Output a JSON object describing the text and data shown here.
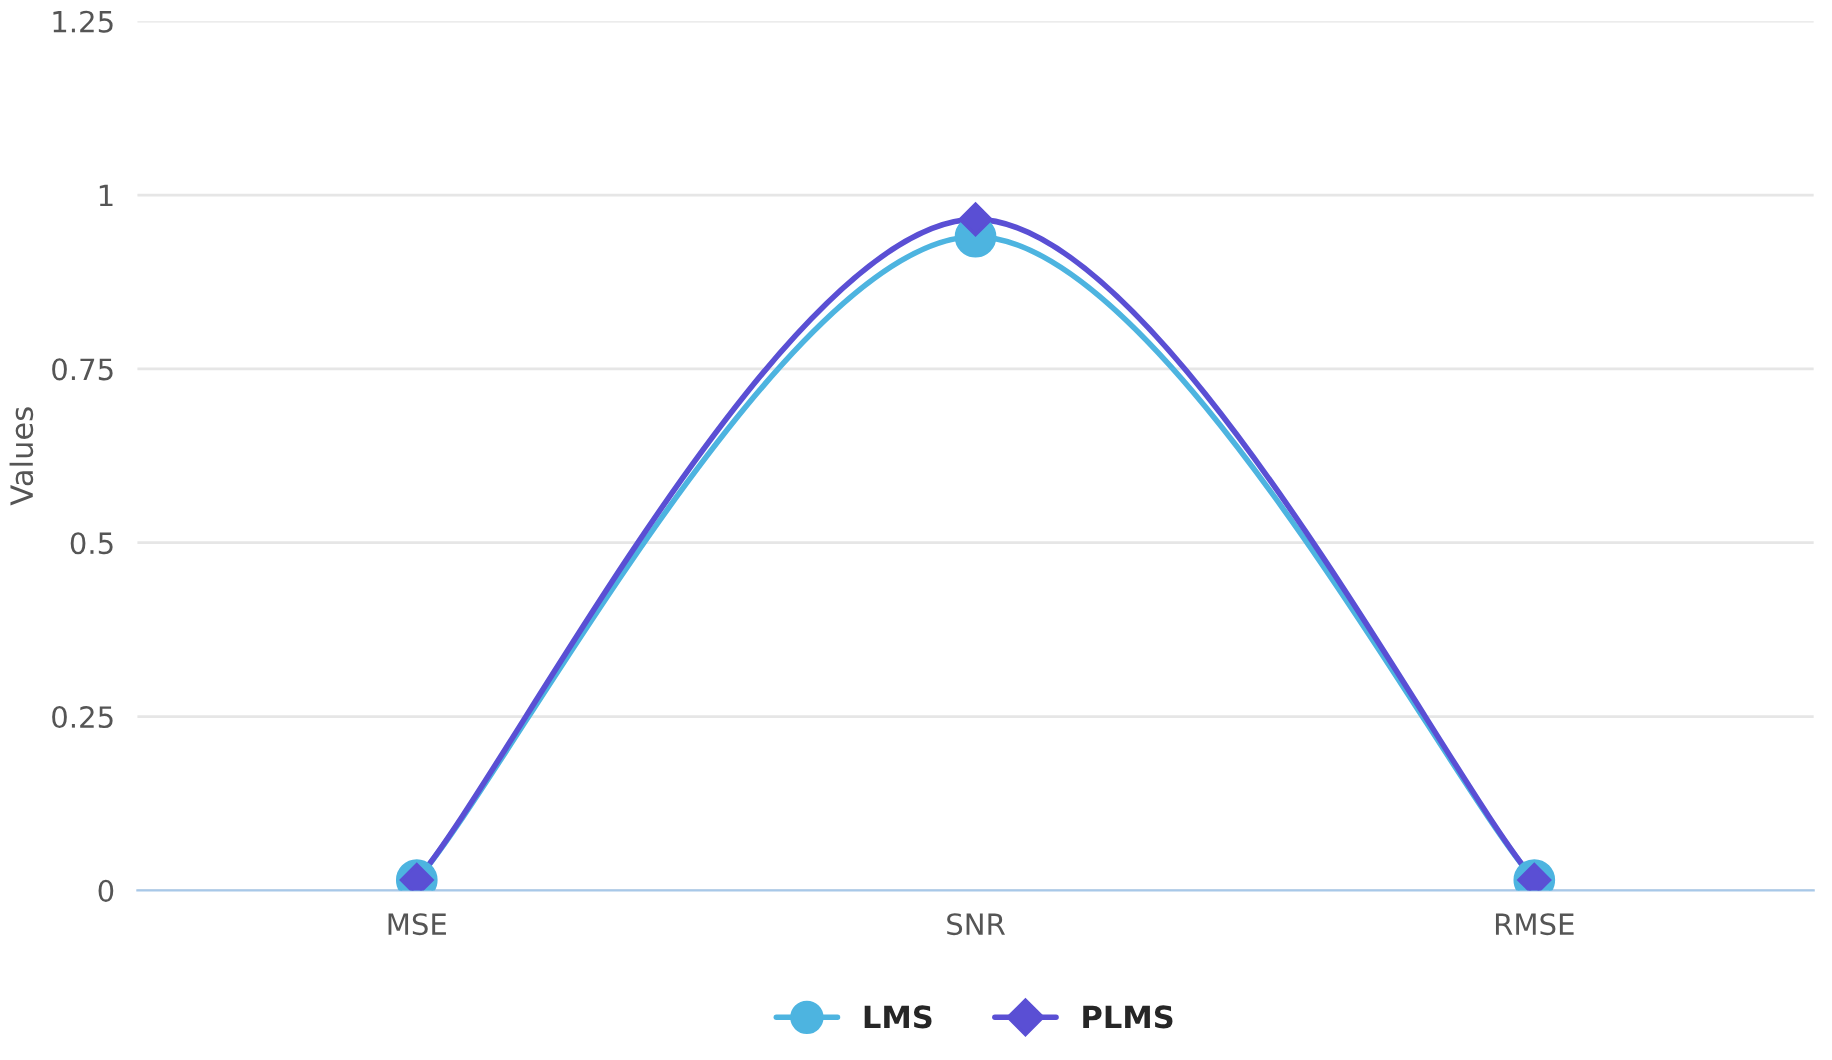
{
  "chart_data": {
    "type": "line",
    "ylabel": "Values",
    "categories": [
      "MSE",
      "SNR",
      "RMSE"
    ],
    "series": [
      {
        "name": "LMS",
        "color": "#4db4e0",
        "values": [
          0.015,
          0.94,
          0.015
        ],
        "marker": "circle"
      },
      {
        "name": "PLMS",
        "color": "#5a4fd4",
        "values": [
          0.015,
          0.965,
          0.015
        ],
        "marker": "diamond"
      }
    ],
    "ylim": [
      0,
      1.25
    ],
    "yticks": [
      0,
      0.25,
      0.5,
      0.75,
      1,
      1.25
    ],
    "grid": "y",
    "legend": "bottom",
    "line_style": "solid"
  }
}
